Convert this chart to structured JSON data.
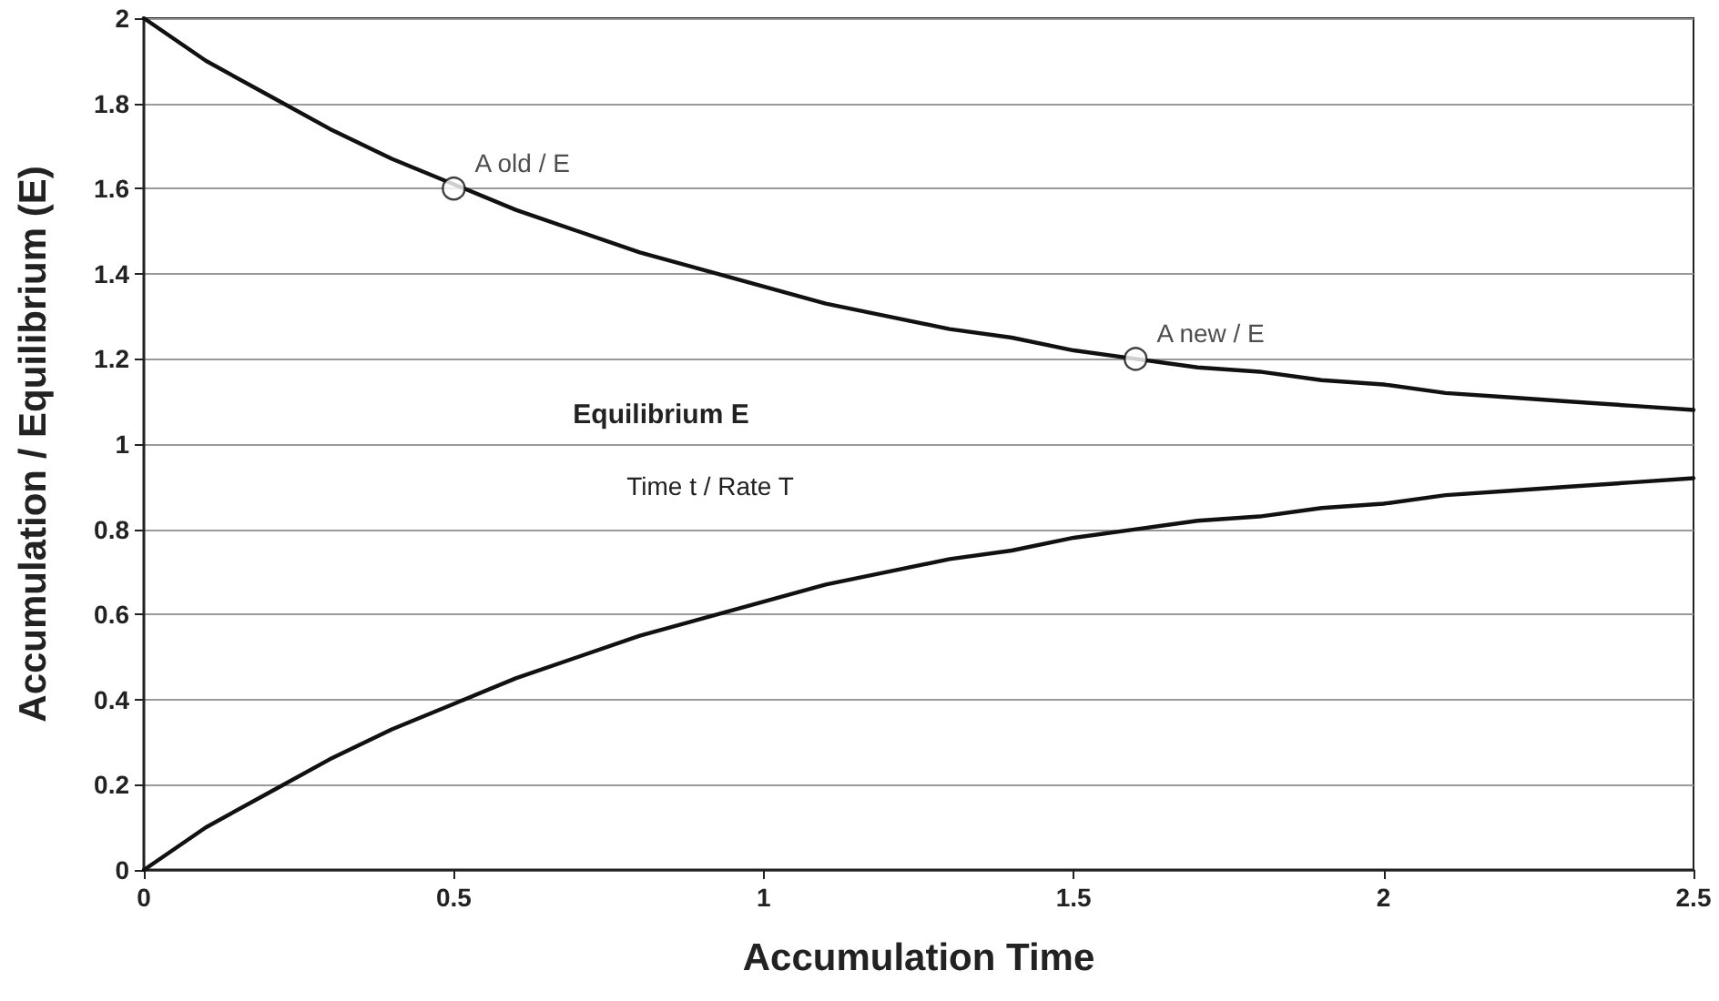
{
  "chart_data": {
    "type": "line",
    "xlabel": "Accumulation Time",
    "ylabel": "Accumulation / Equilibrium (E)",
    "x": [
      0,
      0.1,
      0.2,
      0.3,
      0.4,
      0.5,
      0.6,
      0.7,
      0.8,
      0.9,
      1,
      1.1,
      1.2,
      1.3,
      1.4,
      1.5,
      1.6,
      1.7,
      1.8,
      1.9,
      2,
      2.1,
      2.2,
      2.3,
      2.4,
      2.5
    ],
    "series": [
      {
        "color": "#111111",
        "values": [
          2,
          1.9,
          1.82,
          1.74,
          1.67,
          1.61,
          1.55,
          1.5,
          1.45,
          1.41,
          1.37,
          1.33,
          1.3,
          1.27,
          1.25,
          1.22,
          1.2,
          1.18,
          1.17,
          1.15,
          1.14,
          1.12,
          1.11,
          1.1,
          1.09,
          1.08
        ]
      },
      {
        "color": "#111111",
        "values": [
          0,
          0.1,
          0.18,
          0.26,
          0.33,
          0.39,
          0.45,
          0.5,
          0.55,
          0.59,
          0.63,
          0.67,
          0.7,
          0.73,
          0.75,
          0.78,
          0.8,
          0.82,
          0.83,
          0.85,
          0.86,
          0.88,
          0.89,
          0.9,
          0.91,
          0.92
        ]
      }
    ],
    "xlim": [
      0,
      2.5
    ],
    "xticks": [
      0,
      0.5,
      1,
      1.5,
      2,
      2.5
    ],
    "ylim": [
      0,
      2
    ],
    "yticks": [
      0,
      0.2,
      0.4,
      0.6,
      0.8,
      1,
      1.2,
      1.4,
      1.6,
      1.8,
      2
    ],
    "annotations": [
      {
        "text": "A old / E",
        "x": 0.5,
        "y": 1.6
      },
      {
        "text": "A new / E",
        "x": 1.6,
        "y": 1.2
      },
      "Equilibrium E",
      "Time t / Rate T"
    ],
    "grid": "y",
    "marker": "none",
    "line_style": "solid"
  }
}
